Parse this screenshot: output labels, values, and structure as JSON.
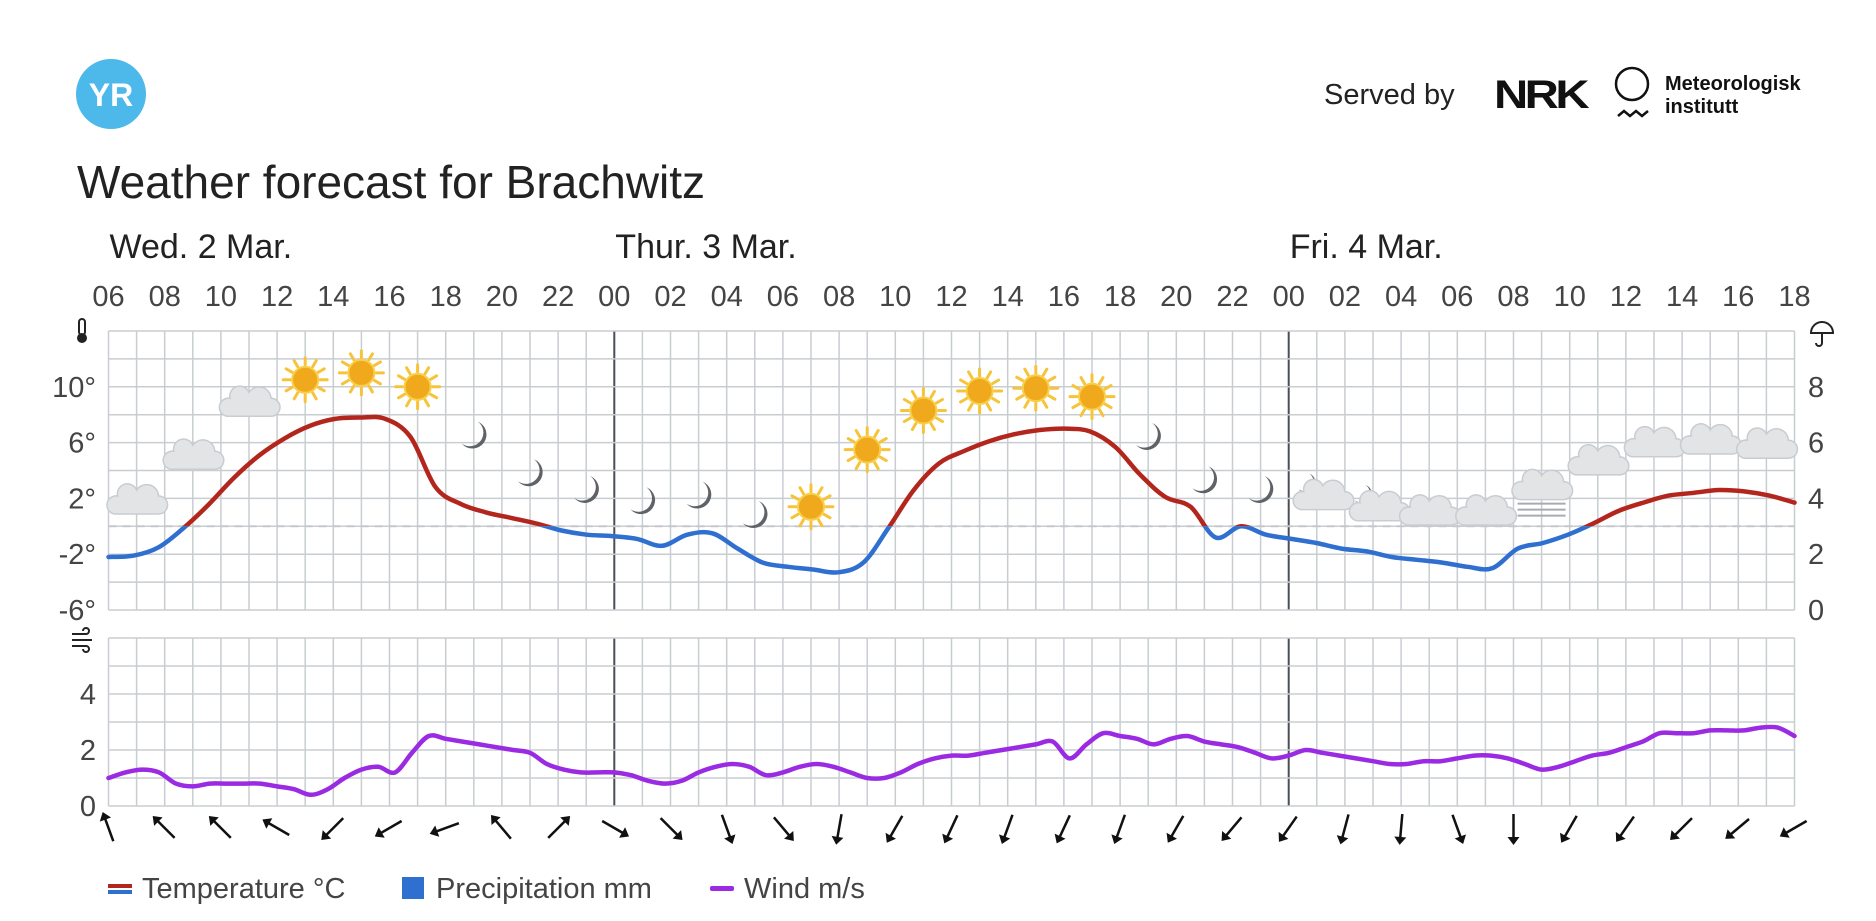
{
  "header": {
    "logo_text": "YR",
    "served_by": "Served by",
    "nrk_logo": "NRK",
    "met_line1": "Meteorologisk",
    "met_line2": "institutt"
  },
  "title": "Weather forecast for Brachwitz",
  "colors": {
    "temp_warm": "#b3261e",
    "temp_cold": "#2f6fcf",
    "wind": "#9a2be3",
    "grid": "#c8cdd2",
    "day_line": "#4a4f55",
    "precip": "#2f6fcf"
  },
  "chart_data": {
    "type": "line",
    "days": [
      {
        "label": "Wed. 2 Mar.",
        "start_hour": "06"
      },
      {
        "label": "Thur. 3 Mar.",
        "start_hour": "00"
      },
      {
        "label": "Fri. 4 Mar.",
        "start_hour": "00"
      }
    ],
    "hour_labels": [
      "06",
      "08",
      "10",
      "12",
      "14",
      "16",
      "18",
      "20",
      "22",
      "00",
      "02",
      "04",
      "06",
      "08",
      "10",
      "12",
      "14",
      "16",
      "18",
      "20",
      "22",
      "00",
      "02",
      "04",
      "06",
      "08",
      "10",
      "12",
      "14",
      "16",
      "18"
    ],
    "temperature_axis": {
      "ticks": [
        "10°",
        "6°",
        "2°",
        "-2°",
        "-6°"
      ],
      "values": [
        10,
        6,
        2,
        -2,
        -6
      ],
      "range": [
        -6,
        14
      ],
      "icon": "thermometer-icon"
    },
    "precipitation_axis": {
      "ticks": [
        "8",
        "6",
        "4",
        "2",
        "0"
      ],
      "values": [
        8,
        6,
        4,
        2,
        0
      ],
      "range": [
        0,
        10
      ],
      "icon": "umbrella-icon"
    },
    "wind_axis": {
      "ticks": [
        "4",
        "2",
        "0"
      ],
      "values": [
        4,
        2,
        0
      ],
      "range": [
        0,
        6
      ],
      "icon": "wind-icon"
    },
    "temperature": [
      -2.2,
      -2.1,
      -1.5,
      -0.1,
      1.6,
      3.5,
      5.1,
      6.3,
      7.2,
      7.7,
      7.8,
      7.7,
      6.4,
      2.8,
      1.6,
      1.0,
      0.6,
      0.2,
      -0.3,
      -0.6,
      -0.7,
      -0.9,
      -1.4,
      -0.6,
      -0.5,
      -1.6,
      -2.6,
      -2.9,
      -3.1,
      -3.3,
      -2.6,
      -0.1,
      2.6,
      4.5,
      5.4,
      6.1,
      6.6,
      6.9,
      7.0,
      6.8,
      5.7,
      3.7,
      2.1,
      1.4,
      -0.8,
      0.0,
      -0.6,
      -0.9,
      -1.2,
      -1.6,
      -1.8,
      -2.2,
      -2.4,
      -2.6,
      -2.9,
      -3.0,
      -1.6,
      -1.2,
      -0.6,
      0.2,
      1.1,
      1.7,
      2.2,
      2.4,
      2.6,
      2.5,
      2.2,
      1.7
    ],
    "weather_symbols": [
      {
        "hour": 1,
        "icon": "cloudy-icon",
        "temp": 1.6
      },
      {
        "hour": 3,
        "icon": "cloudy-icon",
        "temp": 4.8
      },
      {
        "hour": 5,
        "icon": "cloudy-icon",
        "temp": 8.6
      },
      {
        "hour": 7,
        "icon": "clear-sky-day-icon",
        "temp": 10.5
      },
      {
        "hour": 9,
        "icon": "clear-sky-day-icon",
        "temp": 11.0
      },
      {
        "hour": 11,
        "icon": "clear-sky-day-icon",
        "temp": 10.0
      },
      {
        "hour": 13,
        "icon": "clear-sky-night-icon",
        "temp": 6.5
      },
      {
        "hour": 15,
        "icon": "clear-sky-night-icon",
        "temp": 3.8
      },
      {
        "hour": 17,
        "icon": "clear-sky-night-icon",
        "temp": 2.6
      },
      {
        "hour": 19,
        "icon": "clear-sky-night-icon",
        "temp": 1.8
      },
      {
        "hour": 21,
        "icon": "clear-sky-night-icon",
        "temp": 2.2
      },
      {
        "hour": 23,
        "icon": "clear-sky-night-icon",
        "temp": 0.8
      },
      {
        "hour": 25,
        "icon": "clear-sky-day-icon",
        "temp": 1.4
      },
      {
        "hour": 27,
        "icon": "clear-sky-day-icon",
        "temp": 5.5
      },
      {
        "hour": 29,
        "icon": "clear-sky-day-icon",
        "temp": 8.3
      },
      {
        "hour": 31,
        "icon": "clear-sky-day-icon",
        "temp": 9.7
      },
      {
        "hour": 33,
        "icon": "clear-sky-day-icon",
        "temp": 9.9
      },
      {
        "hour": 35,
        "icon": "clear-sky-day-icon",
        "temp": 9.3
      },
      {
        "hour": 37,
        "icon": "clear-sky-night-icon",
        "temp": 6.4
      },
      {
        "hour": 39,
        "icon": "clear-sky-night-icon",
        "temp": 3.3
      },
      {
        "hour": 41,
        "icon": "clear-sky-night-icon",
        "temp": 2.6
      },
      {
        "hour": 43,
        "icon": "partly-cloudy-night-icon",
        "temp": 2.2
      },
      {
        "hour": 45,
        "icon": "partly-cloudy-night-icon",
        "temp": 1.4
      },
      {
        "hour": 47,
        "icon": "cloudy-icon",
        "temp": 0.8
      },
      {
        "hour": 49,
        "icon": "cloudy-icon",
        "temp": 0.8
      },
      {
        "hour": 51,
        "icon": "fog-icon",
        "temp": 2.2
      },
      {
        "hour": 53,
        "icon": "cloudy-icon",
        "temp": 4.4
      },
      {
        "hour": 55,
        "icon": "cloudy-icon",
        "temp": 5.7
      },
      {
        "hour": 57,
        "icon": "cloudy-icon",
        "temp": 5.9
      },
      {
        "hour": 59,
        "icon": "cloudy-icon",
        "temp": 5.6
      }
    ],
    "wind_speed": [
      1.0,
      1.2,
      1.3,
      1.2,
      0.8,
      0.7,
      0.8,
      0.8,
      0.8,
      0.8,
      0.7,
      0.6,
      0.4,
      0.6,
      1.0,
      1.3,
      1.4,
      1.2,
      1.9,
      2.5,
      2.4,
      2.3,
      2.2,
      2.1,
      2.0,
      1.9,
      1.5,
      1.3,
      1.2,
      1.2,
      1.2,
      1.1,
      0.9,
      0.8,
      0.9,
      1.2,
      1.4,
      1.5,
      1.4,
      1.1,
      1.2,
      1.4,
      1.5,
      1.4,
      1.2,
      1.0,
      1.0,
      1.2,
      1.5,
      1.7,
      1.8,
      1.8,
      1.9,
      2.0,
      2.1,
      2.2,
      2.3,
      1.7,
      2.2,
      2.6,
      2.5,
      2.4,
      2.2,
      2.4,
      2.5,
      2.3,
      2.2,
      2.1,
      1.9,
      1.7,
      1.8,
      2.0,
      1.9,
      1.8,
      1.7,
      1.6,
      1.5,
      1.5,
      1.6,
      1.6,
      1.7,
      1.8,
      1.8,
      1.7,
      1.5,
      1.3,
      1.4,
      1.6,
      1.8,
      1.9,
      2.1,
      2.3,
      2.6,
      2.6,
      2.6,
      2.7,
      2.7,
      2.7,
      2.8,
      2.8,
      2.5
    ],
    "wind_directions_deg": [
      340,
      315,
      315,
      300,
      225,
      240,
      250,
      320,
      45,
      120,
      135,
      160,
      140,
      190,
      210,
      205,
      200,
      205,
      200,
      210,
      220,
      215,
      195,
      185,
      160,
      180,
      210,
      215,
      225,
      230,
      240
    ],
    "legend": [
      {
        "label": "Temperature °C",
        "type": "temp"
      },
      {
        "label": "Precipitation mm",
        "type": "precip"
      },
      {
        "label": "Wind m/s",
        "type": "wind"
      }
    ]
  }
}
